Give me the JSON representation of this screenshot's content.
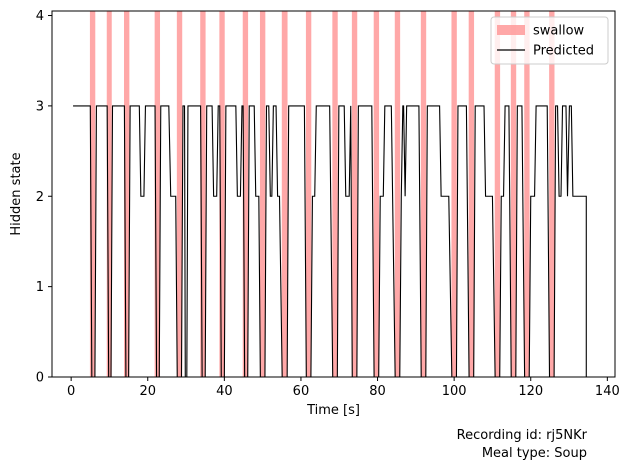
{
  "chart_data": {
    "type": "line",
    "xlabel": "Time [s]",
    "ylabel": "Hidden state",
    "xlim": [
      -5,
      142
    ],
    "ylim": [
      0,
      4.05
    ],
    "x_ticks": [
      "0",
      "20",
      "40",
      "60",
      "80",
      "100",
      "120",
      "140"
    ],
    "y_ticks": [
      "0",
      "1",
      "2",
      "3",
      "4"
    ],
    "grid": false,
    "legend_placement": "top-right",
    "colors": {
      "swallow": "#ff9999",
      "predicted": "#000000"
    },
    "series": [
      {
        "name": "swallow",
        "kind": "shaded-intervals",
        "intervals": [
          [
            4.9,
            6.3
          ],
          [
            9.3,
            10.6
          ],
          [
            13.8,
            15.2
          ],
          [
            21.8,
            23.2
          ],
          [
            27.6,
            29.0
          ],
          [
            33.7,
            35.1
          ],
          [
            38.7,
            40.1
          ],
          [
            44.8,
            46.2
          ],
          [
            49.3,
            50.7
          ],
          [
            55.0,
            56.5
          ],
          [
            61.3,
            62.7
          ],
          [
            68.2,
            69.6
          ],
          [
            73.3,
            74.7
          ],
          [
            79.0,
            80.4
          ],
          [
            84.5,
            85.9
          ],
          [
            91.3,
            92.7
          ],
          [
            99.3,
            100.7
          ],
          [
            103.8,
            105.2
          ],
          [
            110.6,
            112.0
          ],
          [
            114.8,
            116.2
          ],
          [
            118.3,
            119.7
          ],
          [
            124.8,
            126.2
          ]
        ]
      },
      {
        "name": "Predicted",
        "kind": "step-line",
        "points": [
          [
            0.5,
            3
          ],
          [
            5.0,
            3
          ],
          [
            5.4,
            0
          ],
          [
            6.2,
            0
          ],
          [
            6.6,
            3
          ],
          [
            9.4,
            3
          ],
          [
            9.8,
            0
          ],
          [
            10.4,
            0
          ],
          [
            10.8,
            3
          ],
          [
            13.9,
            3
          ],
          [
            14.3,
            0
          ],
          [
            15.0,
            0
          ],
          [
            15.4,
            3
          ],
          [
            17.8,
            3
          ],
          [
            18.2,
            2
          ],
          [
            19.0,
            2
          ],
          [
            19.4,
            3
          ],
          [
            20.6,
            3
          ],
          [
            21.9,
            3
          ],
          [
            22.3,
            0
          ],
          [
            23.0,
            0
          ],
          [
            23.4,
            3
          ],
          [
            25.5,
            3
          ],
          [
            26.0,
            2
          ],
          [
            27.3,
            2
          ],
          [
            27.7,
            0
          ],
          [
            28.8,
            0
          ],
          [
            29.2,
            3
          ],
          [
            29.6,
            3
          ],
          [
            29.8,
            0
          ],
          [
            30.2,
            0
          ],
          [
            30.5,
            3
          ],
          [
            31.0,
            3
          ],
          [
            33.8,
            3
          ],
          [
            34.2,
            0
          ],
          [
            35.0,
            0
          ],
          [
            35.4,
            3
          ],
          [
            36.8,
            3
          ],
          [
            37.2,
            2
          ],
          [
            38.0,
            2
          ],
          [
            38.4,
            3
          ],
          [
            38.8,
            3
          ],
          [
            39.2,
            0
          ],
          [
            40.0,
            0
          ],
          [
            40.4,
            3
          ],
          [
            43.0,
            3
          ],
          [
            43.4,
            2
          ],
          [
            44.2,
            2
          ],
          [
            44.6,
            3
          ],
          [
            44.9,
            3
          ],
          [
            45.3,
            0
          ],
          [
            46.1,
            0
          ],
          [
            46.5,
            3
          ],
          [
            47.8,
            3
          ],
          [
            48.2,
            2
          ],
          [
            49.0,
            2
          ],
          [
            49.4,
            0
          ],
          [
            50.6,
            0
          ],
          [
            51.0,
            3
          ],
          [
            51.6,
            3
          ],
          [
            52.0,
            2
          ],
          [
            52.4,
            2
          ],
          [
            52.8,
            3
          ],
          [
            53.5,
            3
          ],
          [
            53.9,
            2
          ],
          [
            54.4,
            2
          ],
          [
            55.1,
            0
          ],
          [
            56.4,
            0
          ],
          [
            56.8,
            3
          ],
          [
            60.9,
            3
          ],
          [
            61.4,
            0
          ],
          [
            62.6,
            0
          ],
          [
            63.0,
            2
          ],
          [
            63.6,
            2
          ],
          [
            64.0,
            3
          ],
          [
            67.5,
            3
          ],
          [
            68.3,
            0
          ],
          [
            69.5,
            0
          ],
          [
            69.9,
            3
          ],
          [
            71.3,
            3
          ],
          [
            71.7,
            2
          ],
          [
            72.6,
            2
          ],
          [
            73.0,
            3
          ],
          [
            73.4,
            0
          ],
          [
            74.6,
            0
          ],
          [
            75.0,
            3
          ],
          [
            78.5,
            3
          ],
          [
            79.1,
            0
          ],
          [
            80.3,
            0
          ],
          [
            80.7,
            2
          ],
          [
            81.5,
            2
          ],
          [
            81.9,
            3
          ],
          [
            83.6,
            3
          ],
          [
            84.6,
            0
          ],
          [
            85.8,
            0
          ],
          [
            86.2,
            2
          ],
          [
            86.6,
            3
          ],
          [
            86.8,
            3
          ],
          [
            87.2,
            2
          ],
          [
            87.6,
            3
          ],
          [
            90.8,
            3
          ],
          [
            91.4,
            0
          ],
          [
            92.6,
            0
          ],
          [
            93.0,
            3
          ],
          [
            96.2,
            3
          ],
          [
            96.6,
            2
          ],
          [
            98.6,
            2
          ],
          [
            99.4,
            0
          ],
          [
            100.6,
            0
          ],
          [
            101.0,
            3
          ],
          [
            103.2,
            3
          ],
          [
            103.9,
            0
          ],
          [
            105.1,
            0
          ],
          [
            105.5,
            3
          ],
          [
            107.8,
            3
          ],
          [
            108.2,
            2
          ],
          [
            110.0,
            2
          ],
          [
            110.7,
            0
          ],
          [
            111.9,
            0
          ],
          [
            112.3,
            2
          ],
          [
            112.9,
            2
          ],
          [
            113.3,
            3
          ],
          [
            114.3,
            3
          ],
          [
            114.9,
            0
          ],
          [
            116.1,
            0
          ],
          [
            116.5,
            3
          ],
          [
            117.7,
            3
          ],
          [
            118.4,
            0
          ],
          [
            119.6,
            0
          ],
          [
            120.0,
            2
          ],
          [
            121.0,
            2
          ],
          [
            121.4,
            3
          ],
          [
            124.3,
            3
          ],
          [
            124.9,
            0
          ],
          [
            126.1,
            0
          ],
          [
            126.5,
            3
          ],
          [
            127.0,
            3
          ],
          [
            127.4,
            2
          ],
          [
            127.9,
            2
          ],
          [
            128.3,
            3
          ],
          [
            129.2,
            3
          ],
          [
            129.6,
            2
          ],
          [
            130.1,
            3
          ],
          [
            130.6,
            3
          ],
          [
            131.0,
            2
          ],
          [
            134.5,
            2
          ],
          [
            134.5,
            0
          ]
        ]
      }
    ]
  },
  "annotations": {
    "recording_line": "Recording id: rj5NKr",
    "meal_line": "Meal type: Soup"
  }
}
